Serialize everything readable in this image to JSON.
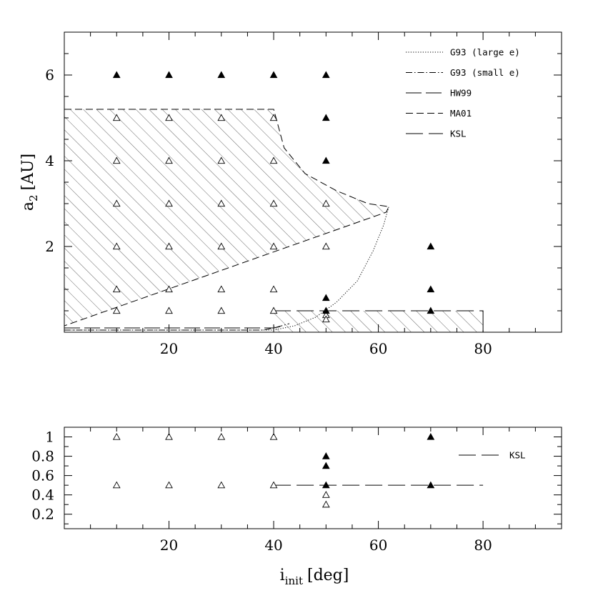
{
  "chart_data": [
    {
      "type": "scatter",
      "panel": "top",
      "xlabel": "",
      "ylabel_base": "a",
      "ylabel_sub": "2",
      "ylabel_unit": "[AU]",
      "xlim": [
        0,
        95
      ],
      "ylim": [
        0,
        7
      ],
      "x_ticks": [
        20,
        40,
        60,
        80
      ],
      "x_tick_labels": [
        "20",
        "40",
        "60",
        "80"
      ],
      "y_ticks": [
        2,
        4,
        6
      ],
      "y_tick_labels": [
        "2",
        "4",
        "6"
      ],
      "series": [
        {
          "marker": "open-triangle",
          "points": [
            [
              10,
              5
            ],
            [
              10,
              4
            ],
            [
              10,
              3
            ],
            [
              10,
              2
            ],
            [
              10,
              1
            ],
            [
              10,
              0.5
            ],
            [
              20,
              5
            ],
            [
              20,
              4
            ],
            [
              20,
              3
            ],
            [
              20,
              2
            ],
            [
              20,
              1
            ],
            [
              20,
              0.5
            ],
            [
              30,
              5
            ],
            [
              30,
              4
            ],
            [
              30,
              3
            ],
            [
              30,
              2
            ],
            [
              30,
              1
            ],
            [
              30,
              0.5
            ],
            [
              40,
              5
            ],
            [
              40,
              4
            ],
            [
              40,
              3
            ],
            [
              40,
              2
            ],
            [
              40,
              1
            ],
            [
              40,
              0.5
            ],
            [
              50,
              3
            ],
            [
              50,
              2
            ],
            [
              50,
              0.4
            ],
            [
              50,
              0.3
            ]
          ]
        },
        {
          "marker": "filled-triangle",
          "points": [
            [
              10,
              6
            ],
            [
              20,
              6
            ],
            [
              30,
              6
            ],
            [
              40,
              6
            ],
            [
              50,
              6
            ],
            [
              50,
              5
            ],
            [
              50,
              4
            ],
            [
              50,
              0.8
            ],
            [
              50,
              0.5
            ],
            [
              70,
              2
            ],
            [
              70,
              1
            ],
            [
              70,
              0.5
            ]
          ]
        }
      ],
      "legend": {
        "position": "top-right",
        "entries": [
          {
            "label": "G93 (large e)",
            "style": "dotted"
          },
          {
            "label": "G93 (small e)",
            "style": "dash-dot"
          },
          {
            "label": "HW99",
            "style": "long-short-dash"
          },
          {
            "label": "MA01",
            "style": "dashed"
          },
          {
            "label": "KSL",
            "style": "long-dash"
          }
        ]
      },
      "curves": {
        "MA01": [
          [
            0,
            5.2
          ],
          [
            40,
            5.2
          ],
          [
            42,
            4.3
          ],
          [
            46,
            3.7
          ],
          [
            52,
            3.3
          ],
          [
            58,
            3.0
          ],
          [
            62,
            2.93
          ],
          [
            61.5,
            2.8
          ],
          [
            0,
            0.15
          ]
        ],
        "G93_large_e": [
          [
            0,
            0.05
          ],
          [
            40,
            0.05
          ],
          [
            44,
            0.15
          ],
          [
            48,
            0.35
          ],
          [
            52,
            0.7
          ],
          [
            56,
            1.2
          ],
          [
            59,
            1.9
          ],
          [
            61,
            2.5
          ],
          [
            62,
            2.93
          ]
        ],
        "G93_small_e": [
          [
            0,
            0.05
          ],
          [
            38,
            0.05
          ],
          [
            40,
            0.1
          ],
          [
            43,
            0.2
          ]
        ],
        "HW99": [
          [
            0,
            0.1
          ],
          [
            40,
            0.1
          ],
          [
            42,
            0.15
          ]
        ],
        "KSL": [
          [
            40,
            0.5
          ],
          [
            80,
            0.5
          ],
          [
            80,
            0
          ]
        ]
      }
    },
    {
      "type": "scatter",
      "panel": "bottom",
      "xlabel_base": "i",
      "xlabel_sub": "init",
      "xlabel_unit": "[deg]",
      "xlim": [
        0,
        95
      ],
      "ylim": [
        0.05,
        1.1
      ],
      "x_ticks": [
        20,
        40,
        60,
        80
      ],
      "x_tick_labels": [
        "20",
        "40",
        "60",
        "80"
      ],
      "y_ticks": [
        0.2,
        0.4,
        0.6,
        0.8,
        1
      ],
      "y_tick_labels": [
        "0.2",
        "0.4",
        "0.6",
        "0.8",
        "1"
      ],
      "series": [
        {
          "marker": "open-triangle",
          "points": [
            [
              10,
              1
            ],
            [
              20,
              1
            ],
            [
              30,
              1
            ],
            [
              40,
              1
            ],
            [
              10,
              0.5
            ],
            [
              20,
              0.5
            ],
            [
              30,
              0.5
            ],
            [
              40,
              0.5
            ],
            [
              50,
              0.4
            ],
            [
              50,
              0.3
            ]
          ]
        },
        {
          "marker": "filled-triangle",
          "points": [
            [
              50,
              0.8
            ],
            [
              50,
              0.7
            ],
            [
              50,
              0.5
            ],
            [
              70,
              1
            ],
            [
              70,
              0.5
            ]
          ]
        }
      ],
      "legend": {
        "position": "top-right",
        "entries": [
          {
            "label": "KSL",
            "style": "long-dash"
          }
        ]
      },
      "curves": {
        "KSL": [
          [
            40,
            0.5
          ],
          [
            80,
            0.5
          ]
        ]
      }
    }
  ]
}
